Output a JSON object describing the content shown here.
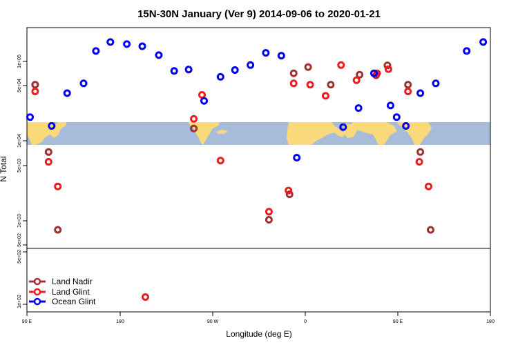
{
  "chart_data": {
    "type": "scatter",
    "title": "15N-30N January (Ver 9)   2014-09-06 to 2020-01-21",
    "xlabel": "Longitude (deg E)",
    "ylabel": "N Total",
    "x_ticks": [
      "90 E",
      "180",
      "90 W",
      "0",
      "90 E",
      "180"
    ],
    "y_ticks_upper": [
      "1e+05",
      "5e+04",
      "1e+04",
      "5e+03",
      "1e+03",
      "5e+02"
    ],
    "y_ticks_lower": [
      "5e+02",
      "1e+02"
    ],
    "x_domain_deg": [
      90,
      540
    ],
    "y_scale": "log",
    "background_map": "world map band (land yellow, ocean blue) across latitude 15N-30N",
    "legend": {
      "position": "bottom-left"
    },
    "series": [
      {
        "name": "Land Nadir",
        "color": "#a0302f",
        "points": [
          {
            "x": 98,
            "y": 51000
          },
          {
            "x": 111,
            "y": 7300
          },
          {
            "x": 120,
            "y": 770
          },
          {
            "x": 252,
            "y": 14400
          },
          {
            "x": 325,
            "y": 1030
          },
          {
            "x": 345,
            "y": 2150
          },
          {
            "x": 349,
            "y": 71000
          },
          {
            "x": 363,
            "y": 85000
          },
          {
            "x": 385,
            "y": 51000
          },
          {
            "x": 413,
            "y": 68000
          },
          {
            "x": 429,
            "y": 67000
          },
          {
            "x": 440,
            "y": 89000
          },
          {
            "x": 460,
            "y": 51000
          },
          {
            "x": 472,
            "y": 7300
          },
          {
            "x": 482,
            "y": 770
          }
        ]
      },
      {
        "name": "Land Glint",
        "color": "#ee1c1c",
        "points": [
          {
            "x": 98,
            "y": 42000
          },
          {
            "x": 111,
            "y": 5500
          },
          {
            "x": 120,
            "y": 2700
          },
          {
            "x": 205,
            "y": 125
          },
          {
            "x": 252,
            "y": 19000
          },
          {
            "x": 260,
            "y": 38000
          },
          {
            "x": 278,
            "y": 5700
          },
          {
            "x": 325,
            "y": 1300
          },
          {
            "x": 344,
            "y": 2400
          },
          {
            "x": 349,
            "y": 53000
          },
          {
            "x": 365,
            "y": 51000
          },
          {
            "x": 380,
            "y": 37000
          },
          {
            "x": 395,
            "y": 90000
          },
          {
            "x": 410,
            "y": 58000
          },
          {
            "x": 430,
            "y": 71000
          },
          {
            "x": 441,
            "y": 80000
          },
          {
            "x": 460,
            "y": 42000
          },
          {
            "x": 471,
            "y": 5500
          },
          {
            "x": 480,
            "y": 2700
          }
        ]
      },
      {
        "name": "Ocean Glint",
        "color": "#0000ee",
        "points": [
          {
            "x": 93,
            "y": 20000
          },
          {
            "x": 114,
            "y": 15500
          },
          {
            "x": 129,
            "y": 40000
          },
          {
            "x": 145,
            "y": 53000
          },
          {
            "x": 157,
            "y": 135000
          },
          {
            "x": 171,
            "y": 175000
          },
          {
            "x": 187,
            "y": 165000
          },
          {
            "x": 202,
            "y": 155000
          },
          {
            "x": 218,
            "y": 120000
          },
          {
            "x": 233,
            "y": 76000
          },
          {
            "x": 247,
            "y": 79000
          },
          {
            "x": 262,
            "y": 32000
          },
          {
            "x": 278,
            "y": 64000
          },
          {
            "x": 292,
            "y": 78000
          },
          {
            "x": 307,
            "y": 90000
          },
          {
            "x": 322,
            "y": 128000
          },
          {
            "x": 337,
            "y": 118000
          },
          {
            "x": 352,
            "y": 6200
          },
          {
            "x": 397,
            "y": 15000
          },
          {
            "x": 412,
            "y": 26000
          },
          {
            "x": 427,
            "y": 71000
          },
          {
            "x": 443,
            "y": 28000
          },
          {
            "x": 449,
            "y": 20000
          },
          {
            "x": 458,
            "y": 15500
          },
          {
            "x": 472,
            "y": 40000
          },
          {
            "x": 487,
            "y": 53000
          },
          {
            "x": 517,
            "y": 135000
          },
          {
            "x": 533,
            "y": 175000
          }
        ]
      }
    ]
  }
}
